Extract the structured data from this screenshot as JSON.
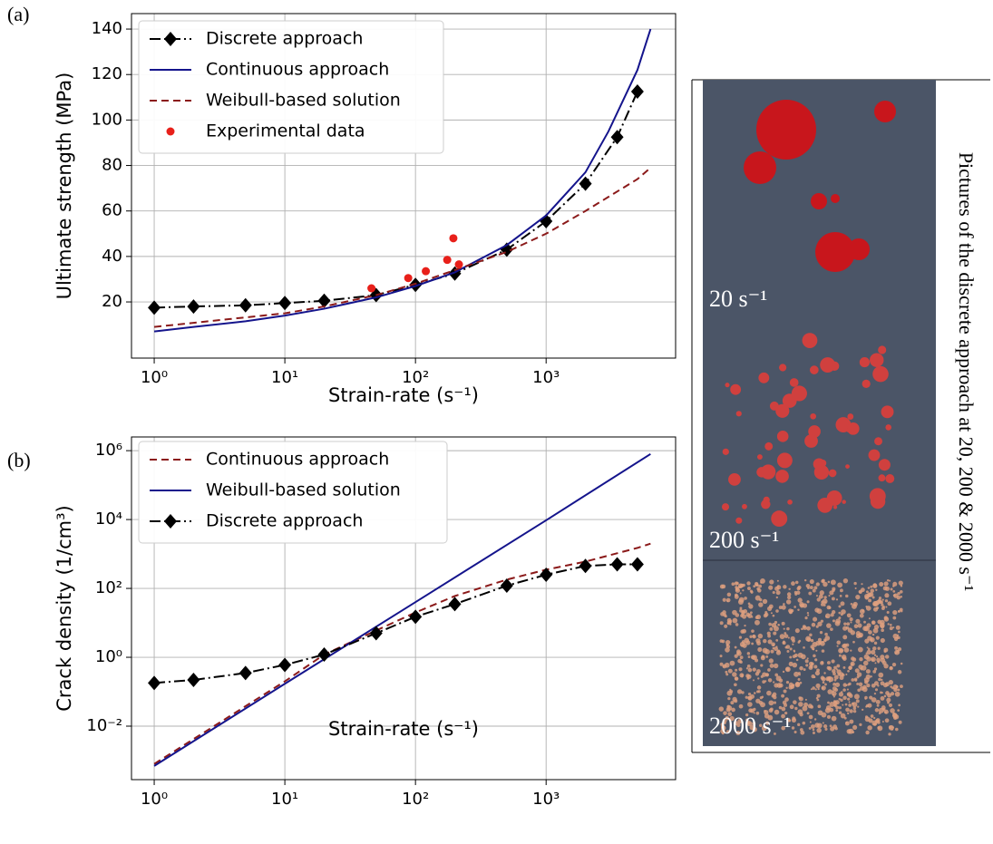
{
  "chart_data": [
    {
      "type": "line",
      "label": "(a)",
      "x_label": "Strain-rate (s⁻¹)",
      "y_label": "Ultimate strength (MPa)",
      "xscale": "log",
      "yscale": "linear",
      "grid": true,
      "legend": "upper left",
      "xlim": [
        0.67,
        9800
      ],
      "ylim": [
        -4.7,
        146.8
      ],
      "xticks": [
        {
          "value": 1,
          "label": "10⁰"
        },
        {
          "value": 10,
          "label": "10¹"
        },
        {
          "value": 100,
          "label": "10²"
        },
        {
          "value": 1000,
          "label": "10³"
        }
      ],
      "yticks": [
        20,
        40,
        60,
        80,
        100,
        120,
        140
      ],
      "series": [
        {
          "name": "Discrete approach",
          "color": "#000000",
          "linestyle": "dashdot",
          "marker": "diamond",
          "x": [
            1,
            2,
            5,
            10,
            20,
            50,
            100,
            200,
            500,
            1000,
            2000,
            3500,
            5000
          ],
          "values": [
            17.5,
            18,
            18.5,
            19.5,
            20.5,
            23,
            27.5,
            32.5,
            43,
            55.5,
            72,
            92.5,
            112.5
          ]
        },
        {
          "name": "Continuous approach",
          "color": "#14148c",
          "linestyle": "solid",
          "marker": "none",
          "x": [
            1,
            2,
            5,
            10,
            20,
            50,
            100,
            200,
            500,
            1000,
            2000,
            3000,
            5000,
            6300
          ],
          "values": [
            7,
            9,
            11.5,
            14,
            17,
            22,
            27,
            33,
            45,
            58,
            77,
            95,
            122,
            140
          ]
        },
        {
          "name": "Weibull-based solution",
          "color": "#8b1a1a",
          "linestyle": "dashed",
          "marker": "none",
          "x": [
            1,
            10,
            20,
            50,
            100,
            200,
            500,
            1000,
            2000,
            5000,
            6300
          ],
          "values": [
            9,
            15,
            18,
            23,
            28,
            34,
            42,
            50,
            60,
            74,
            79
          ]
        },
        {
          "name": "Experimental data",
          "color": "#e8201a",
          "linestyle": "none",
          "marker": "circle",
          "x": [
            46,
            88,
            120,
            175,
            195,
            215
          ],
          "values": [
            26,
            30.5,
            33.5,
            38.5,
            48,
            36.5
          ]
        }
      ]
    },
    {
      "type": "line",
      "label": "(b)",
      "x_label": "Strain-rate (s⁻¹)",
      "y_label": "Crack density (1/cm³)",
      "xscale": "log",
      "yscale": "log",
      "grid": true,
      "legend": "upper left",
      "xlim": [
        0.67,
        9800
      ],
      "ylim": [
        0.00028,
        2500000
      ],
      "xticks": [
        {
          "value": 1,
          "label": "10⁰"
        },
        {
          "value": 10,
          "label": "10¹"
        },
        {
          "value": 100,
          "label": "10²"
        },
        {
          "value": 1000,
          "label": "10³"
        }
      ],
      "yticks": [
        {
          "value": 0.01,
          "label": "10⁻²"
        },
        {
          "value": 1,
          "label": "10⁰"
        },
        {
          "value": 100,
          "label": "10²"
        },
        {
          "value": 10000,
          "label": "10⁴"
        },
        {
          "value": 1000000,
          "label": "10⁶"
        }
      ],
      "series": [
        {
          "name": "Continuous approach",
          "color": "#8b1a1a",
          "linestyle": "dashed",
          "marker": "none",
          "x": [
            1,
            10,
            20,
            50,
            100,
            200,
            500,
            1000,
            2000,
            5000,
            6300
          ],
          "values": [
            0.0008,
            0.2,
            1.2,
            6,
            20,
            60,
            180,
            350,
            600,
            1500,
            2000
          ]
        },
        {
          "name": "Weibull-based solution",
          "color": "#14148c",
          "linestyle": "solid",
          "marker": "none",
          "x": [
            1,
            10,
            100,
            1000,
            6300
          ],
          "values": [
            0.0007,
            0.17,
            40,
            9500,
            800000
          ]
        },
        {
          "name": "Discrete approach",
          "color": "#000000",
          "linestyle": "dashdot",
          "marker": "diamond",
          "x": [
            1,
            2,
            5,
            10,
            20,
            50,
            100,
            200,
            500,
            1000,
            2000,
            3500,
            5000
          ],
          "values": [
            0.18,
            0.22,
            0.35,
            0.6,
            1.2,
            5,
            15,
            35,
            120,
            250,
            450,
            500,
            500
          ]
        }
      ]
    }
  ],
  "side_panel": {
    "caption": "Pictures of the discrete approach at 20, 200 & 2000 s⁻¹",
    "image_labels": [
      "20 s⁻¹",
      "200 s⁻¹",
      "2000 s⁻¹"
    ]
  }
}
